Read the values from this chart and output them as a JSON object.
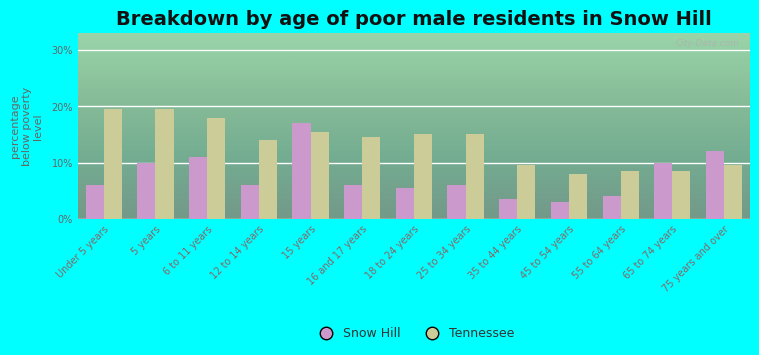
{
  "title": "Breakdown by age of poor male residents in Snow Hill",
  "ylabel": "percentage\nbelow poverty\nlevel",
  "categories": [
    "Under 5 years",
    "5 years",
    "6 to 11 years",
    "12 to 14 years",
    "15 years",
    "16 and 17 years",
    "18 to 24 years",
    "25 to 34 years",
    "35 to 44 years",
    "45 to 54 years",
    "55 to 64 years",
    "65 to 74 years",
    "75 years and over"
  ],
  "snow_hill": [
    6,
    10,
    11,
    6,
    17,
    6,
    5.5,
    6,
    3.5,
    3,
    4,
    10,
    12
  ],
  "tennessee": [
    19.5,
    19.5,
    18,
    14,
    15.5,
    14.5,
    15,
    15,
    9.5,
    8,
    8.5,
    8.5,
    9.5
  ],
  "snow_hill_color": "#cc99cc",
  "tennessee_color": "#cccc99",
  "background_color": "#00ffff",
  "ytick_labels": [
    "0%",
    "10%",
    "20%",
    "30%"
  ],
  "ytick_values": [
    0,
    10,
    20,
    30
  ],
  "ylim": [
    0,
    33
  ],
  "bar_width": 0.35,
  "title_fontsize": 14,
  "axis_label_fontsize": 8,
  "tick_label_fontsize": 7,
  "legend_fontsize": 9,
  "tick_color": "#886666",
  "ylabel_color": "#666666",
  "ytick_color": "#666666"
}
